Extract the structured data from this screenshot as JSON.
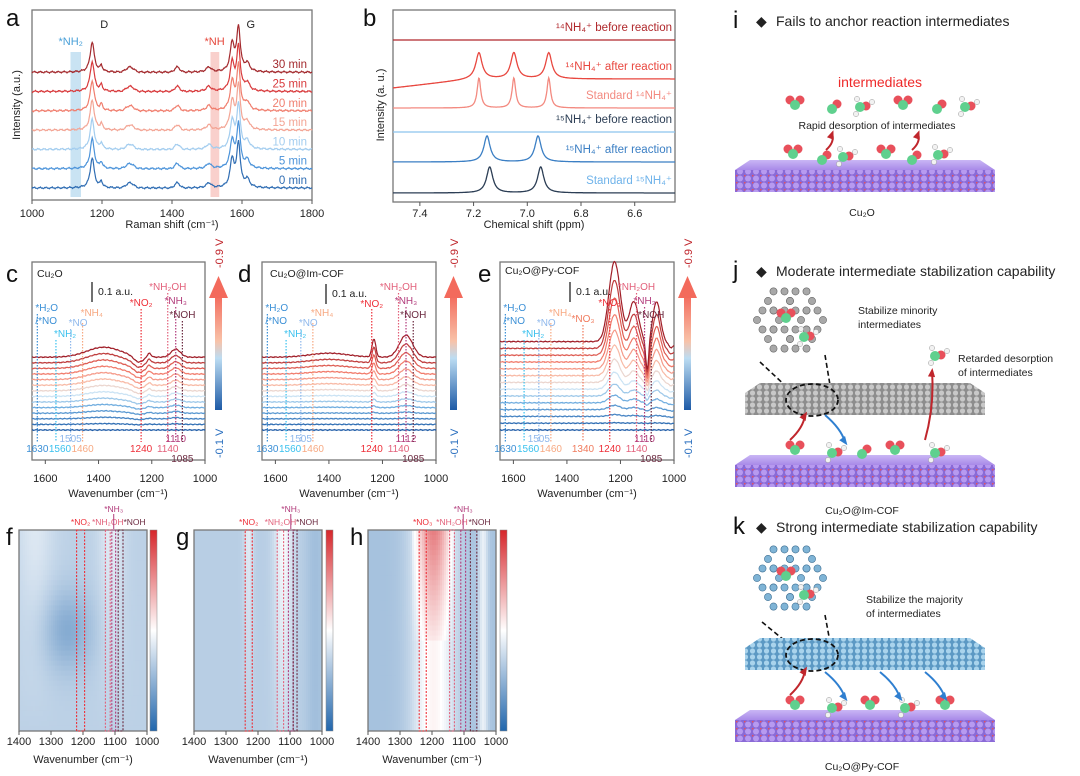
{
  "colors": {
    "cold": "#2166ac",
    "warm": "#d6262b",
    "cu2o_slab": "#9b7fe0",
    "oxygen": "#e8505b",
    "nitrogen": "#5fd08e",
    "hydrogen": "#f2f2f2",
    "cof_gray": "#9a9a9a",
    "cof_blue": "#7fb4d6"
  },
  "chart_data": [
    {
      "panel": "a",
      "type": "line",
      "xlabel": "Raman shift (cm⁻¹)",
      "ylabel": "Intensity (a.u.)",
      "xlim": [
        1000,
        1800
      ],
      "xticks": [
        1000,
        1200,
        1400,
        1600,
        1800
      ],
      "peaks": [
        {
          "label": "D",
          "x": 1172
        },
        {
          "label": "G",
          "x": 1590
        }
      ],
      "bands": [
        {
          "label": "*NH₂",
          "x": [
            1110,
            1140
          ],
          "color": "#bcdcf0"
        },
        {
          "label": "*NH",
          "x": [
            1510,
            1535
          ],
          "color": "#f8c4bf"
        }
      ],
      "series": [
        {
          "name": "0 min",
          "color": "#2f6db3"
        },
        {
          "name": "5 min",
          "color": "#4d94da"
        },
        {
          "name": "10 min",
          "color": "#a3cdef"
        },
        {
          "name": "15 min",
          "color": "#f3a595"
        },
        {
          "name": "20 min",
          "color": "#f07e6e"
        },
        {
          "name": "25 min",
          "color": "#d83a3c"
        },
        {
          "name": "30 min",
          "color": "#a3292d"
        }
      ]
    },
    {
      "panel": "b",
      "type": "line",
      "xlabel": "Chemical shift (ppm)",
      "ylabel": "Intensity (a. u.)",
      "xlim": [
        7.5,
        6.45
      ],
      "xticks": [
        7.4,
        7.2,
        7.0,
        6.8,
        6.6
      ],
      "series": [
        {
          "name": "¹⁴NH₄⁺ before reaction",
          "color": "#b0282c",
          "peaks": []
        },
        {
          "name": "¹⁴NH₄⁺ after reaction",
          "color": "#e8473f",
          "peaks": [
            7.18,
            7.05,
            6.92
          ]
        },
        {
          "name": "Standard ¹⁴NH₄⁺",
          "color": "#f38a80",
          "peaks": [
            7.18,
            7.05,
            6.92
          ]
        },
        {
          "name": "¹⁵NH₄⁺ before reaction",
          "color": "#8cc4ee",
          "label_color": "#2c3e55",
          "peaks": []
        },
        {
          "name": "¹⁵NH₄⁺ after reaction",
          "color": "#3b7fc4",
          "peaks": [
            7.15,
            6.96
          ]
        },
        {
          "name": "Standard ¹⁵NH₄⁺",
          "color": "#2c3e55",
          "label_color": "#6fb3ea",
          "peaks": [
            7.14,
            6.95
          ]
        }
      ]
    },
    {
      "panel": "c",
      "type": "line",
      "title": "Cu₂O",
      "xlabel": "Wavenumber (cm⁻¹)",
      "xlim": [
        1650,
        1000
      ],
      "xticks": [
        1600,
        1400,
        1200,
        1000
      ],
      "scale_bar": "0.1 a.u.",
      "colorbar": {
        "top": "-0.9 V",
        "bottom": "-0.1 V"
      },
      "markers": [
        {
          "label": "*H₂O",
          "label2": "/*NO",
          "x": 1630,
          "color": "#3a8fd6"
        },
        {
          "label": "*NH₂",
          "x": 1560,
          "color": "#39c1ee"
        },
        {
          "label": "*NO",
          "x": 1505,
          "color": "#8fb8ec"
        },
        {
          "label": "*NH₄",
          "x": 1460,
          "color": "#f7a982"
        },
        {
          "label": "*NO₂",
          "x": 1240,
          "color": "#ee2e37"
        },
        {
          "label": "*NH₂OH",
          "x": 1140,
          "color": "#e2607a"
        },
        {
          "label": "*NH₃",
          "x": 1110,
          "color": "#b13a7a"
        },
        {
          "label": "*NOH",
          "x": 1085,
          "color": "#6b2a40"
        }
      ]
    },
    {
      "panel": "d",
      "type": "line",
      "title": "Cu₂O@Im-COF",
      "xlabel": "Wavenumber (cm⁻¹)",
      "xlim": [
        1650,
        1000
      ],
      "xticks": [
        1600,
        1400,
        1200,
        1000
      ],
      "scale_bar": "0.1 a.u.",
      "colorbar": {
        "top": "-0.9 V",
        "bottom": "-0.1 V"
      },
      "markers": [
        {
          "label": "*H₂O",
          "label2": "/*NO",
          "x": 1630,
          "color": "#3a8fd6"
        },
        {
          "label": "*NH₂",
          "x": 1560,
          "color": "#39c1ee"
        },
        {
          "label": "*NO",
          "x": 1505,
          "color": "#8fb8ec"
        },
        {
          "label": "*NH₄",
          "x": 1460,
          "color": "#f7a982"
        },
        {
          "label": "*NO₂",
          "x": 1240,
          "color": "#ee2e37"
        },
        {
          "label": "*NH₂OH",
          "x": 1140,
          "color": "#e2607a"
        },
        {
          "label": "*NH₃",
          "x": 1112,
          "color": "#b13a7a"
        },
        {
          "label": "*NOH",
          "x": 1085,
          "color": "#6b2a40"
        }
      ]
    },
    {
      "panel": "e",
      "type": "line",
      "title": "Cu₂O@Py-COF",
      "xlabel": "Wavenumber (cm⁻¹)",
      "xlim": [
        1650,
        1000
      ],
      "xticks": [
        1600,
        1400,
        1200,
        1000
      ],
      "scale_bar": "0.1 a.u.",
      "colorbar": {
        "top": "-0.9 V",
        "bottom": "-0.1 V"
      },
      "markers": [
        {
          "label": "*H₂O",
          "label2": "/*NO",
          "x": 1630,
          "color": "#3a8fd6"
        },
        {
          "label": "*NH₂",
          "x": 1560,
          "color": "#39c1ee"
        },
        {
          "label": "*NO",
          "x": 1505,
          "color": "#8fb8ec"
        },
        {
          "label": "*NH₄",
          "x": 1460,
          "color": "#f7a982"
        },
        {
          "label": "*NO₃",
          "x": 1340,
          "color": "#f07a5c"
        },
        {
          "label": "*NO₂",
          "x": 1240,
          "color": "#ee2e37"
        },
        {
          "label": "*NH₂OH",
          "x": 1140,
          "color": "#e2607a"
        },
        {
          "label": "*NH₃",
          "x": 1110,
          "color": "#b13a7a"
        },
        {
          "label": "*NOH",
          "x": 1085,
          "color": "#6b2a40"
        }
      ]
    },
    {
      "panel": "f",
      "type": "heatmap",
      "xlabel": "Wavenumber (cm⁻¹)",
      "xlim": [
        1400,
        1000
      ],
      "xticks": [
        1400,
        1300,
        1200,
        1100,
        1000
      ],
      "boxes": [
        {
          "label": "*NO₂",
          "x": [
            1220,
            1195
          ],
          "color": "#ee2e37"
        },
        {
          "label": "*NH₂OH",
          "x": [
            1130,
            1115
          ],
          "color": "#e2607a"
        },
        {
          "label": "*NH₃",
          "x": [
            1110,
            1098
          ],
          "color": "#b13a7a"
        },
        {
          "label": "*NOH",
          "x": [
            1090,
            1075
          ],
          "color": "#6b2a40"
        }
      ]
    },
    {
      "panel": "g",
      "type": "heatmap",
      "xlabel": "Wavenumber (cm⁻¹)",
      "xlim": [
        1400,
        1000
      ],
      "xticks": [
        1400,
        1300,
        1200,
        1100,
        1000
      ],
      "boxes": [
        {
          "label": "*NO₂",
          "x": [
            1240,
            1218
          ],
          "color": "#ee2e37"
        },
        {
          "label": "*NH₂OH",
          "x": [
            1140,
            1120
          ],
          "color": "#e2607a"
        },
        {
          "label": "*NH₃",
          "x": [
            1105,
            1090
          ],
          "color": "#b13a7a"
        },
        {
          "label": "*NOH",
          "x": [
            1090,
            1078
          ],
          "color": "#6b2a40"
        }
      ]
    },
    {
      "panel": "h",
      "type": "heatmap",
      "xlabel": "Wavenumber (cm⁻¹)",
      "xlim": [
        1400,
        1000
      ],
      "xticks": [
        1400,
        1300,
        1200,
        1100,
        1000
      ],
      "boxes": [
        {
          "label": "*NO₃",
          "x": [
            1240,
            1218
          ],
          "color": "#ee2e37"
        },
        {
          "label": "*NH₂OH",
          "x": [
            1145,
            1130
          ],
          "color": "#e2607a"
        },
        {
          "label": "*NH₃",
          "x": [
            1110,
            1095
          ],
          "color": "#b13a7a"
        },
        {
          "label": "*NOH",
          "x": [
            1080,
            1060
          ],
          "color": "#6b2a40"
        }
      ]
    }
  ],
  "schemes": {
    "i": {
      "letter": "i",
      "title": "Fails to anchor reaction intermediates",
      "intermediates": "intermediates",
      "desorption": "Rapid desorption of intermediates",
      "material": "Cu₂O"
    },
    "j": {
      "letter": "j",
      "title": "Moderate intermediate stabilization capability",
      "stabilize_1": "Stabilize minority",
      "stabilize_2": "intermediates",
      "retarded_1": "Retarded desorption",
      "retarded_2": "of intermediates",
      "material": "Cu₂O@Im-COF"
    },
    "k": {
      "letter": "k",
      "title": "Strong intermediate stabilization capability",
      "stabilize_1": "Stabilize the majority",
      "stabilize_2": "of intermediates",
      "material": "Cu₂O@Py-COF"
    }
  }
}
